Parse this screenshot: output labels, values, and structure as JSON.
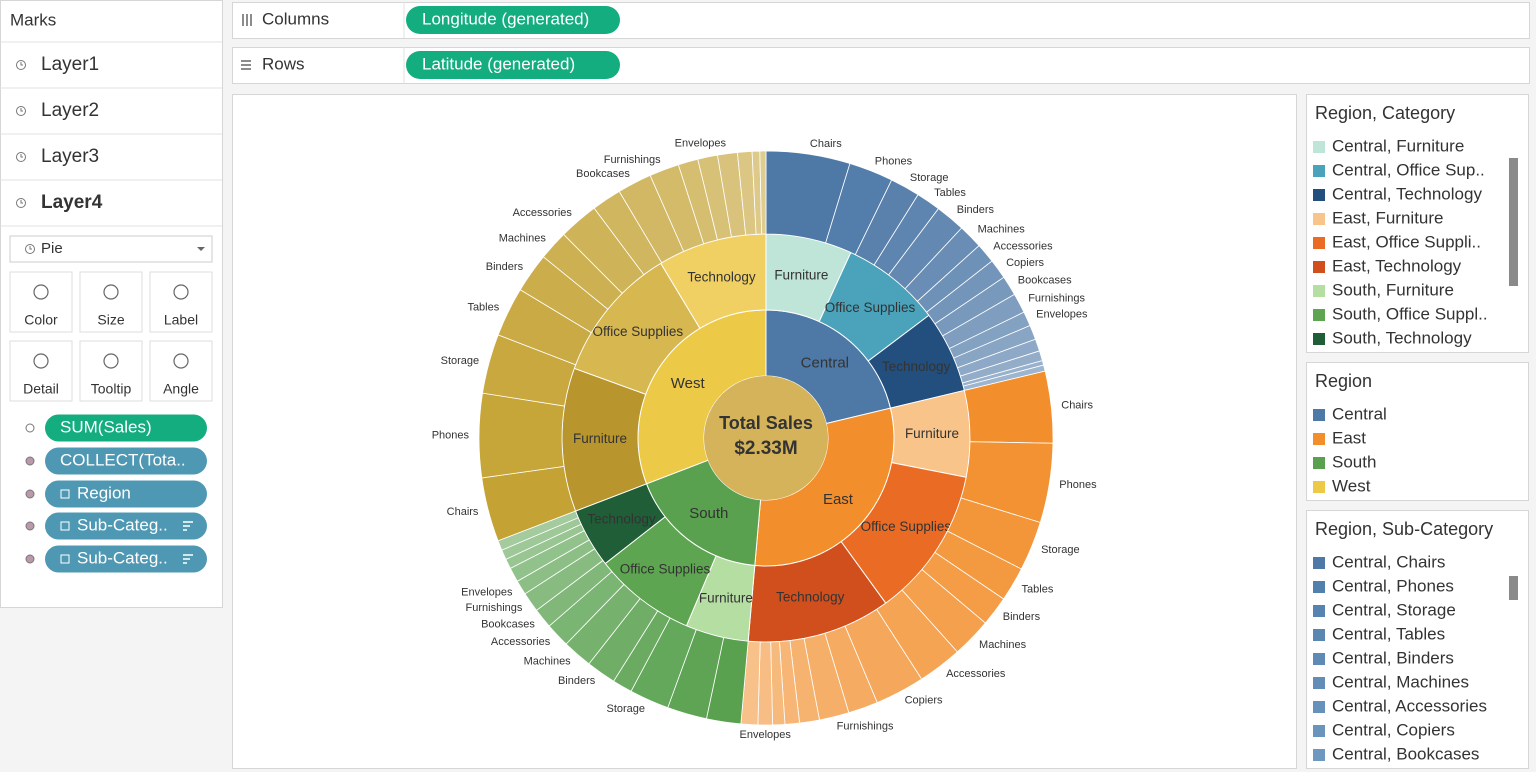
{
  "marks_panel": {
    "title": "Marks",
    "layers": [
      "Layer1",
      "Layer2",
      "Layer3",
      "Layer4"
    ],
    "mark_type": "Pie",
    "cards": [
      "Color",
      "Size",
      "Label",
      "Detail",
      "Tooltip",
      "Angle"
    ],
    "pills": [
      {
        "label": "SUM(Sales)",
        "color": "#14ad7f"
      },
      {
        "label": "COLLECT(Tota..",
        "color": "#4f98b4"
      },
      {
        "label": "Region",
        "color": "#4f98b4"
      },
      {
        "label": "Sub-Categ..",
        "color": "#4f98b4"
      },
      {
        "label": "Sub-Categ..",
        "color": "#4f98b4"
      }
    ]
  },
  "shelves": [
    {
      "label": "Columns",
      "pill": "Longitude (generated)",
      "color": "#14ad7f"
    },
    {
      "label": "Rows",
      "pill": "Latitude (generated)",
      "color": "#14ad7f"
    }
  ],
  "legends": [
    {
      "title": "Region, Category",
      "items": [
        {
          "label": "Central, Furniture",
          "color": "#bfe4d8"
        },
        {
          "label": "Central, Office Sup..",
          "color": "#4ba3bb"
        },
        {
          "label": "Central, Technology",
          "color": "#234f7e"
        },
        {
          "label": "East, Furniture",
          "color": "#f9c48a"
        },
        {
          "label": "East, Office Suppli..",
          "color": "#ea6c24"
        },
        {
          "label": "East, Technology",
          "color": "#d04f1d"
        },
        {
          "label": "South, Furniture",
          "color": "#b4dea2"
        },
        {
          "label": "South, Office Suppl..",
          "color": "#5ea552"
        },
        {
          "label": "South, Technology",
          "color": "#1f5e37"
        }
      ]
    },
    {
      "title": "Region",
      "items": [
        {
          "label": "Central",
          "color": "#4e79a7"
        },
        {
          "label": "East",
          "color": "#f28e2b"
        },
        {
          "label": "South",
          "color": "#59a14f"
        },
        {
          "label": "West",
          "color": "#edc948"
        }
      ]
    },
    {
      "title": "Region, Sub-Category",
      "items": [
        {
          "label": "Central, Chairs",
          "color": "#4e79a7"
        },
        {
          "label": "Central, Phones",
          "color": "#5280ad"
        },
        {
          "label": "Central, Storage",
          "color": "#5683b0"
        },
        {
          "label": "Central, Tables",
          "color": "#5a86b2"
        },
        {
          "label": "Central, Binders",
          "color": "#5e8ab5"
        },
        {
          "label": "Central, Machines",
          "color": "#628db7"
        },
        {
          "label": "Central, Accessories",
          "color": "#6691ba"
        },
        {
          "label": "Central, Copiers",
          "color": "#6a94bc"
        },
        {
          "label": "Central, Bookcases",
          "color": "#6e98bf"
        }
      ]
    }
  ],
  "chart_data": {
    "type": "sunburst",
    "center_title": "Total Sales",
    "center_value_label": "$2.33M",
    "center_color": "#d4b35a",
    "regions": [
      {
        "name": "Central",
        "value": 495000,
        "color": "#4e79a7",
        "sub_color": "#4e79a7",
        "categories": [
          {
            "name": "Furniture",
            "value": 159000,
            "color": "#bfe4d8"
          },
          {
            "name": "Office Supplies",
            "value": 184000,
            "color": "#4ba3bb"
          },
          {
            "name": "Technology",
            "value": 152000,
            "color": "#234f7e"
          }
        ],
        "subcategories": [
          {
            "name": "Chairs",
            "value": 110000
          },
          {
            "name": "Phones",
            "value": 58000
          },
          {
            "name": "Storage",
            "value": 39000
          },
          {
            "name": "Tables",
            "value": 32000
          },
          {
            "name": "Binders",
            "value": 39000
          },
          {
            "name": "Machines",
            "value": 32000
          },
          {
            "name": "Accessories",
            "value": 26000
          },
          {
            "name": "Copiers",
            "value": 26000
          },
          {
            "name": "Bookcases",
            "value": 26000
          },
          {
            "name": "Furnishings",
            "value": 26000
          },
          {
            "name": "Envelopes",
            "value": 19000
          },
          {
            "name": null,
            "value": 19000
          },
          {
            "name": null,
            "value": 16000
          },
          {
            "name": null,
            "value": 13000
          },
          {
            "name": null,
            "value": 6000
          },
          {
            "name": null,
            "value": 8000
          }
        ]
      },
      {
        "name": "East",
        "value": 702000,
        "color": "#f28e2b",
        "sub_color": "#f28e2b",
        "categories": [
          {
            "name": "Furniture",
            "value": 159000,
            "color": "#f9c48a"
          },
          {
            "name": "Office Supplies",
            "value": 278000,
            "color": "#ea6c24"
          },
          {
            "name": "Technology",
            "value": 265000,
            "color": "#d04f1d"
          }
        ],
        "subcategories": [
          {
            "name": "Chairs",
            "value": 94000
          },
          {
            "name": "Phones",
            "value": 104000
          },
          {
            "name": "Storage",
            "value": 65000
          },
          {
            "name": "Tables",
            "value": 45000
          },
          {
            "name": "Binders",
            "value": 39000
          },
          {
            "name": "Machines",
            "value": 52000
          },
          {
            "name": "Accessories",
            "value": 58000
          },
          {
            "name": "Copiers",
            "value": 65000
          },
          {
            "name": null,
            "value": 39000
          },
          {
            "name": "Furnishings",
            "value": 39000
          },
          {
            "name": null,
            "value": 26000
          },
          {
            "name": null,
            "value": 19000
          },
          {
            "name": null,
            "value": 16000
          },
          {
            "name": "Envelopes",
            "value": 19000
          },
          {
            "name": null,
            "value": 22000
          }
        ]
      },
      {
        "name": "South",
        "value": 414000,
        "color": "#59a14f",
        "sub_color": "#59a14f",
        "categories": [
          {
            "name": "Furniture",
            "value": 116000,
            "color": "#b4dea2"
          },
          {
            "name": "Office Supplies",
            "value": 188000,
            "color": "#5ea552"
          },
          {
            "name": "Technology",
            "value": 110000,
            "color": "#1f5e37"
          }
        ],
        "subcategories": [
          {
            "name": null,
            "value": 45000
          },
          {
            "name": null,
            "value": 52000
          },
          {
            "name": "Storage",
            "value": 52000
          },
          {
            "name": null,
            "value": 26000
          },
          {
            "name": "Binders",
            "value": 39000
          },
          {
            "name": "Machines",
            "value": 39000
          },
          {
            "name": "Accessories",
            "value": 32000
          },
          {
            "name": "Bookcases",
            "value": 26000
          },
          {
            "name": "Furnishings",
            "value": 26000
          },
          {
            "name": "Envelopes",
            "value": 19000
          },
          {
            "name": null,
            "value": 19000
          },
          {
            "name": null,
            "value": 13000
          },
          {
            "name": null,
            "value": 13000
          },
          {
            "name": null,
            "value": 13000
          }
        ]
      },
      {
        "name": "West",
        "value": 718000,
        "color": "#edc948",
        "sub_color": "#c4a233",
        "categories": [
          {
            "name": "Furniture",
            "value": 265000,
            "color": "#b8962d"
          },
          {
            "name": "Office Supplies",
            "value": 252000,
            "color": "#d7b750"
          },
          {
            "name": "Technology",
            "value": 201000,
            "color": "#f0cf63"
          }
        ],
        "subcategories": [
          {
            "name": "Chairs",
            "value": 84000
          },
          {
            "name": "Phones",
            "value": 110000
          },
          {
            "name": "Storage",
            "value": 78000
          },
          {
            "name": "Tables",
            "value": 65000
          },
          {
            "name": "Binders",
            "value": 52000
          },
          {
            "name": "Machines",
            "value": 39000
          },
          {
            "name": "Accessories",
            "value": 52000
          },
          {
            "name": null,
            "value": 39000
          },
          {
            "name": "Bookcases",
            "value": 45000
          },
          {
            "name": "Furnishings",
            "value": 39000
          },
          {
            "name": null,
            "value": 26000
          },
          {
            "name": null,
            "value": 26000
          },
          {
            "name": "Envelopes",
            "value": 26000
          },
          {
            "name": null,
            "value": 19000
          },
          {
            "name": null,
            "value": 10000
          },
          {
            "name": null,
            "value": 8000
          }
        ]
      }
    ]
  }
}
